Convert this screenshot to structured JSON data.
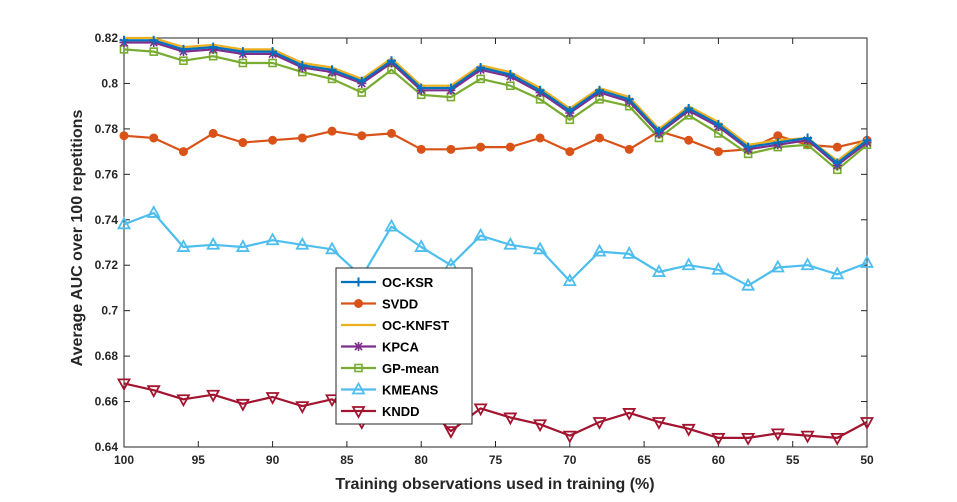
{
  "chart_data": {
    "type": "line",
    "title": "",
    "xlabel": "Training observations used in training (%)",
    "ylabel": "Average AUC over 100 repetitions",
    "xlim": [
      100,
      50
    ],
    "ylim": [
      0.64,
      0.82
    ],
    "x_reversed": true,
    "grid": false,
    "legend_position": "center-left",
    "x_ticks": [
      100,
      95,
      90,
      85,
      80,
      75,
      70,
      65,
      60,
      55,
      50
    ],
    "x_tick_labels": [
      "100",
      "95",
      "90",
      "85",
      "80",
      "75",
      "70",
      "65",
      "60",
      "55",
      "50"
    ],
    "y_ticks": [
      0.64,
      0.66,
      0.68,
      0.7,
      0.72,
      0.74,
      0.76,
      0.78,
      0.8,
      0.82
    ],
    "y_tick_labels": [
      "0.64",
      "0.66",
      "0.68",
      "0.7",
      "0.72",
      "0.74",
      "0.76",
      "0.78",
      "0.8",
      "0.82"
    ],
    "x": [
      100,
      98,
      96,
      94,
      92,
      90,
      88,
      86,
      84,
      82,
      80,
      78,
      76,
      74,
      72,
      70,
      68,
      66,
      64,
      62,
      60,
      58,
      56,
      54,
      52,
      50
    ],
    "series": [
      {
        "name": "OC-KSR",
        "color": "#0072BD",
        "marker": "plus",
        "values": [
          0.819,
          0.819,
          0.815,
          0.816,
          0.814,
          0.814,
          0.808,
          0.806,
          0.801,
          0.81,
          0.798,
          0.798,
          0.807,
          0.804,
          0.797,
          0.788,
          0.797,
          0.793,
          0.779,
          0.789,
          0.782,
          0.772,
          0.774,
          0.776,
          0.765,
          0.775
        ]
      },
      {
        "name": "SVDD",
        "color": "#D95319",
        "marker": "circle",
        "values": [
          0.777,
          0.776,
          0.77,
          0.778,
          0.774,
          0.775,
          0.776,
          0.779,
          0.777,
          0.778,
          0.771,
          0.771,
          0.772,
          0.772,
          0.776,
          0.77,
          0.776,
          0.771,
          0.779,
          0.775,
          0.77,
          0.771,
          0.777,
          0.773,
          0.772,
          0.775
        ]
      },
      {
        "name": "OC-KNFST",
        "color": "#EDB120",
        "marker": "none",
        "values": [
          0.82,
          0.82,
          0.816,
          0.817,
          0.815,
          0.815,
          0.809,
          0.807,
          0.802,
          0.811,
          0.799,
          0.799,
          0.808,
          0.805,
          0.798,
          0.789,
          0.798,
          0.794,
          0.78,
          0.79,
          0.783,
          0.773,
          0.775,
          0.776,
          0.766,
          0.776
        ]
      },
      {
        "name": "KPCA",
        "color": "#7E2F8E",
        "marker": "star",
        "values": [
          0.818,
          0.818,
          0.814,
          0.815,
          0.813,
          0.813,
          0.807,
          0.805,
          0.8,
          0.809,
          0.797,
          0.797,
          0.806,
          0.803,
          0.796,
          0.787,
          0.796,
          0.792,
          0.778,
          0.788,
          0.781,
          0.771,
          0.773,
          0.775,
          0.764,
          0.774
        ]
      },
      {
        "name": "GP-mean",
        "color": "#77AC30",
        "marker": "square",
        "values": [
          0.815,
          0.814,
          0.81,
          0.812,
          0.809,
          0.809,
          0.805,
          0.802,
          0.796,
          0.806,
          0.795,
          0.794,
          0.802,
          0.799,
          0.793,
          0.784,
          0.793,
          0.79,
          0.776,
          0.786,
          0.778,
          0.769,
          0.772,
          0.773,
          0.762,
          0.773
        ]
      },
      {
        "name": "KMEANS",
        "color": "#4DBEEE",
        "marker": "triangle-up",
        "values": [
          0.738,
          0.743,
          0.728,
          0.729,
          0.728,
          0.731,
          0.729,
          0.727,
          0.715,
          0.737,
          0.728,
          0.72,
          0.733,
          0.729,
          0.727,
          0.713,
          0.726,
          0.725,
          0.717,
          0.72,
          0.718,
          0.711,
          0.719,
          0.72,
          0.716,
          0.721
        ]
      },
      {
        "name": "KNDD",
        "color": "#A2142F",
        "marker": "triangle-down",
        "values": [
          0.668,
          0.665,
          0.661,
          0.663,
          0.659,
          0.662,
          0.658,
          0.661,
          0.651,
          0.657,
          0.66,
          0.647,
          0.657,
          0.653,
          0.65,
          0.645,
          0.651,
          0.655,
          0.651,
          0.648,
          0.644,
          0.644,
          0.646,
          0.645,
          0.644,
          0.651
        ]
      }
    ]
  }
}
